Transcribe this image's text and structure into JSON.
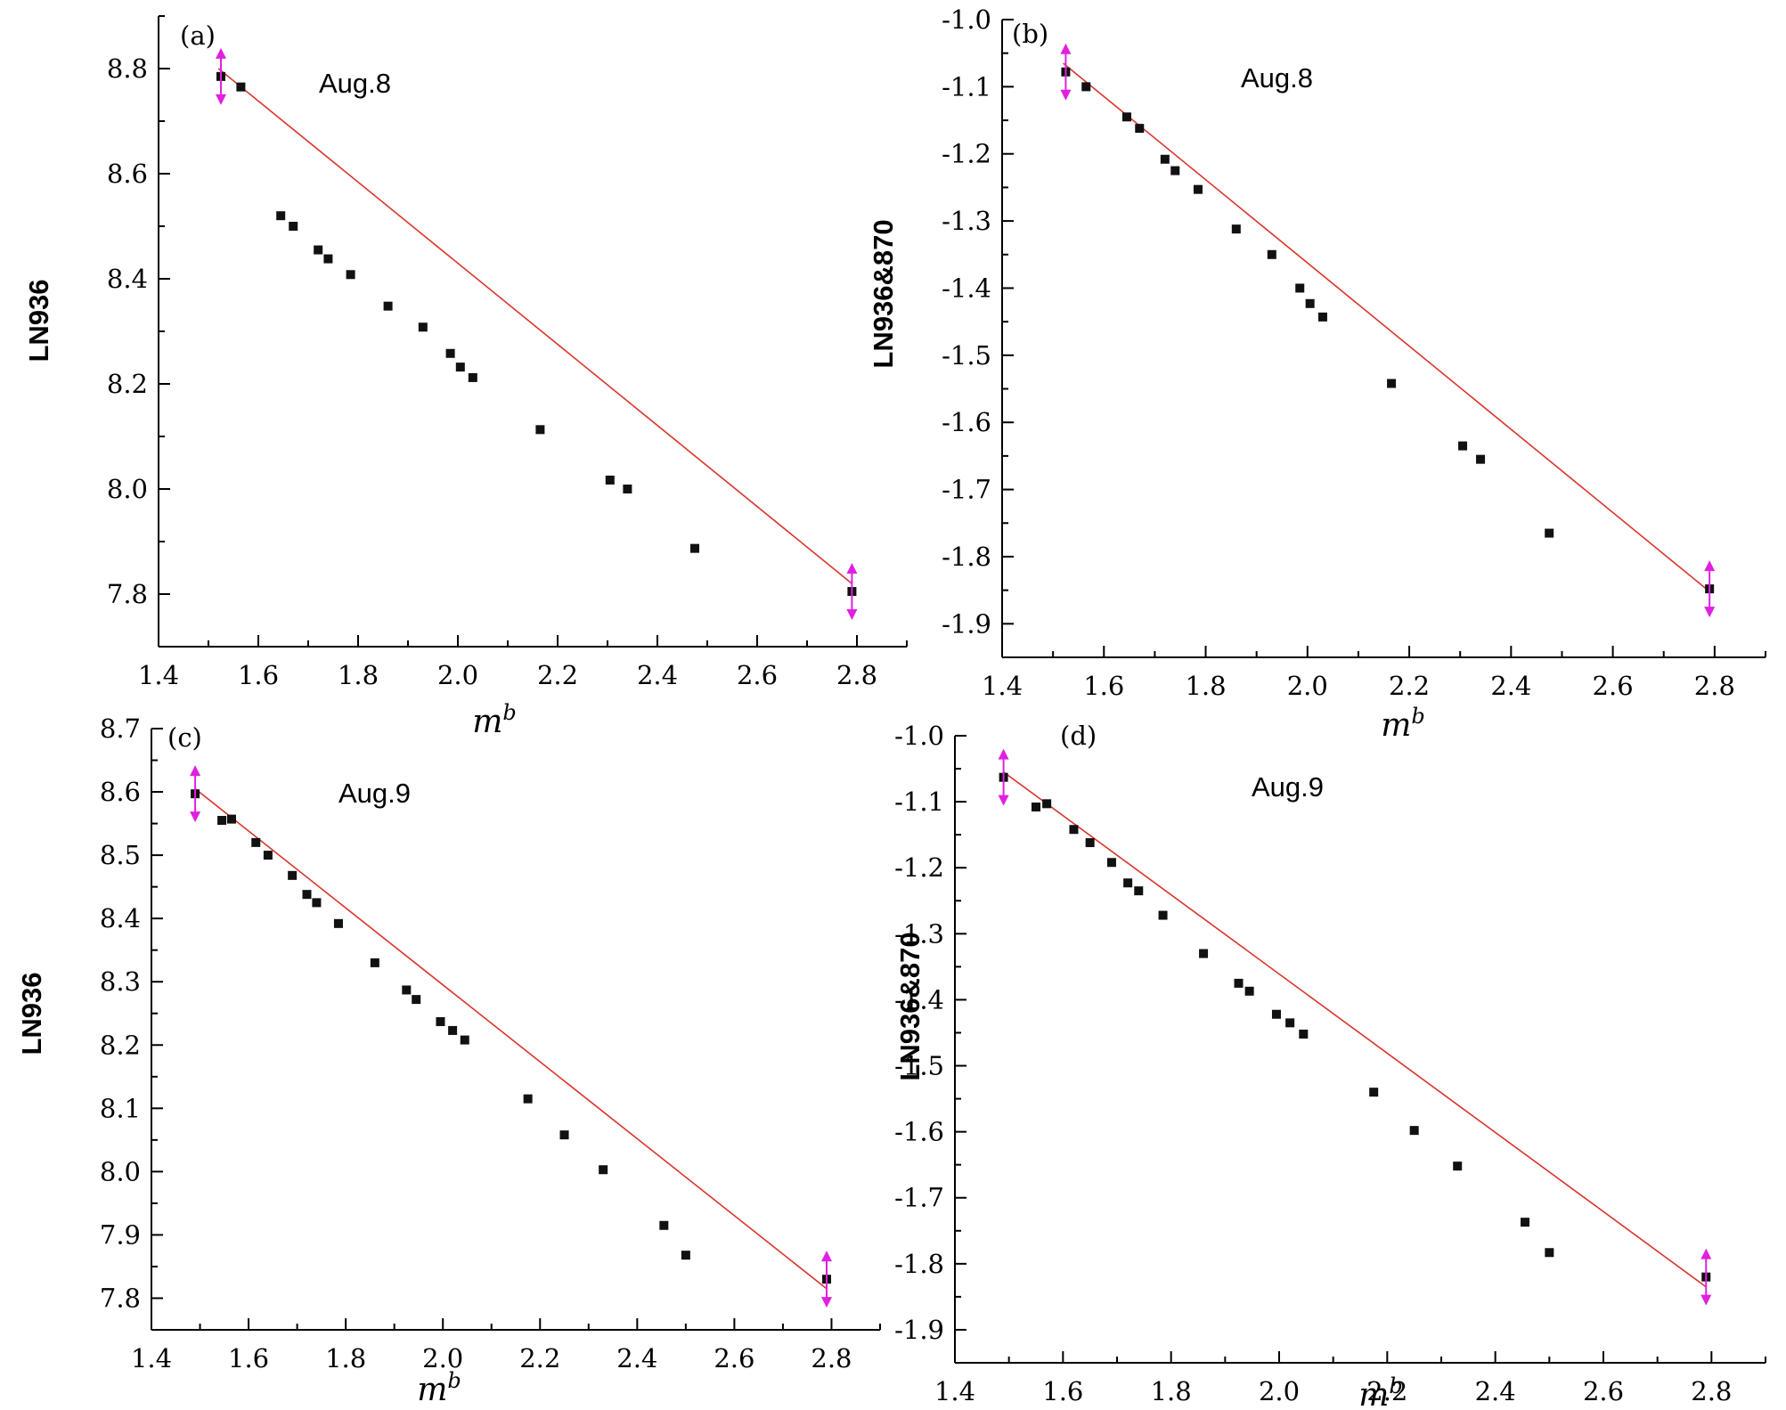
{
  "chart_data": [
    {
      "type": "scatter",
      "panel_label": "(a)",
      "annotation": "Aug.8",
      "xlabel": "m",
      "xlabel_sup": "b",
      "ylabel": "LN936",
      "xlim": [
        1.4,
        2.9
      ],
      "ylim": [
        7.7,
        8.9
      ],
      "x_ticks": [
        1.4,
        1.6,
        1.8,
        2.0,
        2.2,
        2.4,
        2.6,
        2.8
      ],
      "x_tick_labels": [
        "1.4",
        "1.6",
        "1.8",
        "2.0",
        "2.2",
        "2.4",
        "2.6",
        "2.8"
      ],
      "y_ticks": [
        7.8,
        8.0,
        8.2,
        8.4,
        8.6,
        8.8
      ],
      "y_tick_labels": [
        "7.8",
        "8.0",
        "8.2",
        "8.4",
        "8.6",
        "8.8"
      ],
      "fit": {
        "x": [
          1.52,
          2.79
        ],
        "y": [
          8.8,
          7.82
        ]
      },
      "points": {
        "x": [
          1.525,
          1.565,
          1.645,
          1.67,
          1.72,
          1.74,
          1.785,
          1.86,
          1.93,
          1.985,
          2.005,
          2.03,
          2.165,
          2.305,
          2.34,
          2.475,
          2.79
        ],
        "y": [
          8.785,
          8.765,
          8.52,
          8.5,
          8.455,
          8.438,
          8.408,
          8.348,
          8.308,
          8.258,
          8.232,
          8.212,
          8.113,
          8.017,
          8.0,
          7.887,
          7.805
        ]
      },
      "error_bars": [
        {
          "x": 1.525,
          "y": 8.785
        },
        {
          "x": 2.79,
          "y": 7.805
        }
      ]
    },
    {
      "type": "scatter",
      "panel_label": "(b)",
      "annotation": "Aug.8",
      "xlabel": "m",
      "xlabel_sup": "b",
      "ylabel": "LN936&870",
      "xlim": [
        1.4,
        2.9
      ],
      "ylim": [
        -1.95,
        -1.0
      ],
      "x_ticks": [
        1.4,
        1.6,
        1.8,
        2.0,
        2.2,
        2.4,
        2.6,
        2.8
      ],
      "x_tick_labels": [
        "1.4",
        "1.6",
        "1.8",
        "2.0",
        "2.2",
        "2.4",
        "2.6",
        "2.8"
      ],
      "y_ticks": [
        -1.0,
        -1.1,
        -1.2,
        -1.3,
        -1.4,
        -1.5,
        -1.6,
        -1.7,
        -1.8,
        -1.9
      ],
      "y_tick_labels": [
        "-1.0",
        "-1.1",
        "-1.2",
        "-1.3",
        "-1.4",
        "-1.5",
        "-1.6",
        "-1.7",
        "-1.8",
        "-1.9"
      ],
      "fit": {
        "x": [
          1.52,
          2.79
        ],
        "y": [
          -1.065,
          -1.852
        ]
      },
      "points": {
        "x": [
          1.525,
          1.565,
          1.645,
          1.67,
          1.72,
          1.74,
          1.785,
          1.86,
          1.93,
          1.985,
          2.005,
          2.03,
          2.165,
          2.305,
          2.34,
          2.475,
          2.79
        ],
        "y": [
          -1.078,
          -1.1,
          -1.145,
          -1.162,
          -1.208,
          -1.225,
          -1.253,
          -1.312,
          -1.35,
          -1.4,
          -1.423,
          -1.443,
          -1.542,
          -1.635,
          -1.655,
          -1.765,
          -1.848
        ]
      },
      "error_bars": [
        {
          "x": 1.525,
          "y": -1.078
        },
        {
          "x": 2.79,
          "y": -1.848
        }
      ]
    },
    {
      "type": "scatter",
      "panel_label": "(c)",
      "annotation": "Aug.9",
      "xlabel": "m",
      "xlabel_sup": "b",
      "ylabel": "LN936",
      "xlim": [
        1.4,
        2.9
      ],
      "ylim": [
        7.75,
        8.7
      ],
      "x_ticks": [
        1.4,
        1.6,
        1.8,
        2.0,
        2.2,
        2.4,
        2.6,
        2.8
      ],
      "x_tick_labels": [
        "1.4",
        "1.6",
        "1.8",
        "2.0",
        "2.2",
        "2.4",
        "2.6",
        "2.8"
      ],
      "y_ticks": [
        7.8,
        7.9,
        8.0,
        8.1,
        8.2,
        8.3,
        8.4,
        8.5,
        8.6,
        8.7
      ],
      "y_tick_labels": [
        "7.8",
        "7.9",
        "8.0",
        "8.1",
        "8.2",
        "8.3",
        "8.4",
        "8.5",
        "8.6",
        "8.7"
      ],
      "fit": {
        "x": [
          1.49,
          2.79
        ],
        "y": [
          8.605,
          7.815
        ]
      },
      "points": {
        "x": [
          1.49,
          1.545,
          1.565,
          1.615,
          1.64,
          1.69,
          1.72,
          1.74,
          1.785,
          1.86,
          1.925,
          1.945,
          1.995,
          2.02,
          2.045,
          2.175,
          2.25,
          2.33,
          2.455,
          2.5,
          2.79
        ],
        "y": [
          8.597,
          8.555,
          8.557,
          8.52,
          8.5,
          8.468,
          8.438,
          8.425,
          8.392,
          8.33,
          8.287,
          8.272,
          8.237,
          8.223,
          8.208,
          8.115,
          8.058,
          8.003,
          7.915,
          7.868,
          7.83
        ]
      },
      "error_bars": [
        {
          "x": 1.49,
          "y": 8.597
        },
        {
          "x": 2.79,
          "y": 7.83
        }
      ]
    },
    {
      "type": "scatter",
      "panel_label": "(d)",
      "annotation": "Aug.9",
      "xlabel": "m",
      "xlabel_sup": "b",
      "ylabel": "LN936&870",
      "xlim": [
        1.4,
        2.9
      ],
      "ylim": [
        -1.95,
        -1.0
      ],
      "x_ticks": [
        1.4,
        1.6,
        1.8,
        2.0,
        2.2,
        2.4,
        2.6,
        2.8
      ],
      "x_tick_labels": [
        "1.4",
        "1.6",
        "1.8",
        "2.0",
        "2.2",
        "2.4",
        "2.6",
        "2.8"
      ],
      "y_ticks": [
        -1.0,
        -1.1,
        -1.2,
        -1.3,
        -1.4,
        -1.5,
        -1.6,
        -1.7,
        -1.8,
        -1.9
      ],
      "y_tick_labels": [
        "-1.0",
        "-1.1",
        "-1.2",
        "-1.3",
        "-1.4",
        "-1.5",
        "-1.6",
        "-1.7",
        "-1.8",
        "-1.9"
      ],
      "fit": {
        "x": [
          1.49,
          2.79
        ],
        "y": [
          -1.055,
          -1.835
        ]
      },
      "points": {
        "x": [
          1.49,
          1.55,
          1.57,
          1.62,
          1.65,
          1.69,
          1.72,
          1.74,
          1.785,
          1.86,
          1.925,
          1.945,
          1.995,
          2.02,
          2.045,
          2.175,
          2.25,
          2.33,
          2.455,
          2.5,
          2.79
        ],
        "y": [
          -1.063,
          -1.108,
          -1.103,
          -1.142,
          -1.162,
          -1.192,
          -1.223,
          -1.235,
          -1.272,
          -1.33,
          -1.375,
          -1.387,
          -1.422,
          -1.435,
          -1.452,
          -1.54,
          -1.598,
          -1.652,
          -1.737,
          -1.783,
          -1.82
        ]
      },
      "error_bars": [
        {
          "x": 1.49,
          "y": -1.063
        },
        {
          "x": 2.79,
          "y": -1.82
        }
      ]
    }
  ]
}
